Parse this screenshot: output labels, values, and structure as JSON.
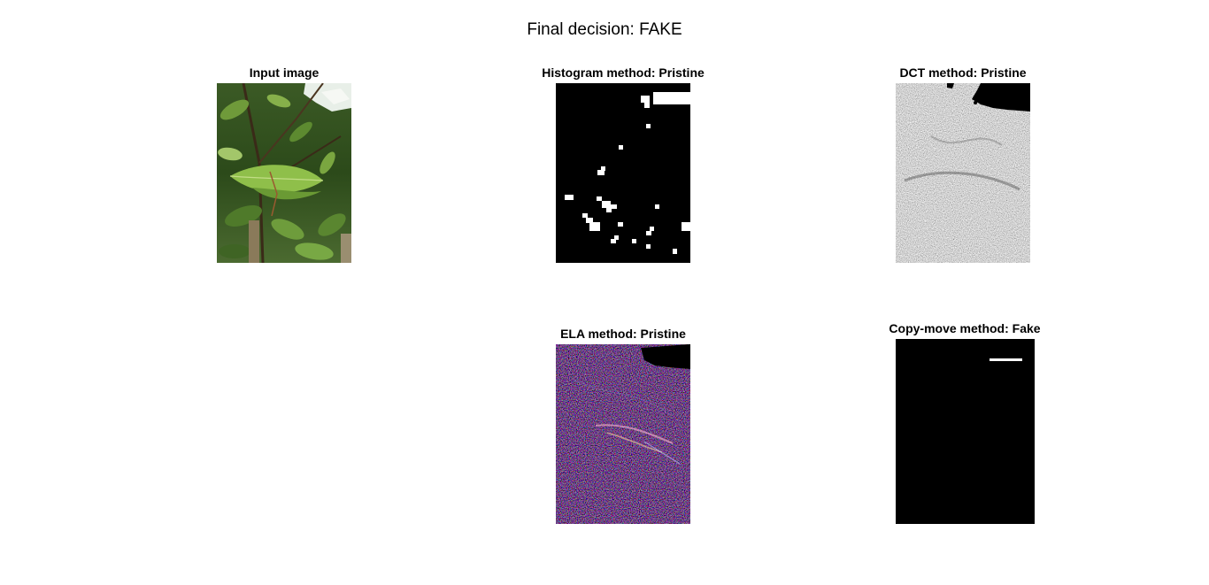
{
  "figure": {
    "suptitle": "Final decision: FAKE",
    "panels": {
      "input": {
        "title": "Input image"
      },
      "histogram": {
        "title": "Histogram method: Pristine"
      },
      "dct": {
        "title": "DCT method: Pristine"
      },
      "ela": {
        "title": "ELA method: Pristine"
      },
      "copymove": {
        "title": "Copy-move method: Fake"
      }
    }
  },
  "colors": {
    "background": "#ffffff",
    "mask_on": "#ffffff",
    "mask_off": "#000000",
    "foliage_dark": "#2f4a1e",
    "foliage_light": "#8fbf4a"
  }
}
